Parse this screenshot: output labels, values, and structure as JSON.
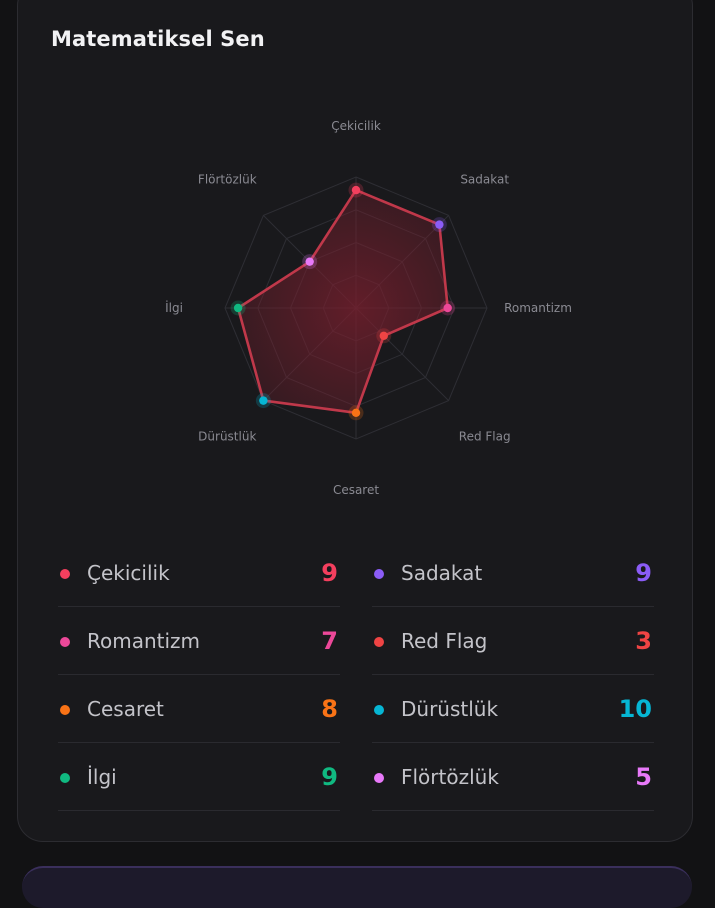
{
  "card": {
    "title": "Matematiksel Sen"
  },
  "chart_data": {
    "type": "radar",
    "title": "",
    "max": 10,
    "rings": 4,
    "line_color": "#c0384a",
    "fill_color": "#7a1f2e",
    "axes": [
      {
        "label": "Çekicilik",
        "value": 9,
        "color": "#f43f5e"
      },
      {
        "label": "Sadakat",
        "value": 9,
        "color": "#8b5cf6"
      },
      {
        "label": "Romantizm",
        "value": 7,
        "color": "#ec4899"
      },
      {
        "label": "Red Flag",
        "value": 3,
        "color": "#ef4444"
      },
      {
        "label": "Cesaret",
        "value": 8,
        "color": "#f97316"
      },
      {
        "label": "Dürüstlük",
        "value": 10,
        "color": "#06b6d4"
      },
      {
        "label": "İlgi",
        "value": 9,
        "color": "#10b981"
      },
      {
        "label": "Flörtözlük",
        "value": 5,
        "color": "#e879f9"
      }
    ]
  },
  "stats": [
    {
      "label": "Çekicilik",
      "value": "9",
      "color": "#f43f5e"
    },
    {
      "label": "Sadakat",
      "value": "9",
      "color": "#8b5cf6"
    },
    {
      "label": "Romantizm",
      "value": "7",
      "color": "#ec4899"
    },
    {
      "label": "Red Flag",
      "value": "3",
      "color": "#ef4444"
    },
    {
      "label": "Cesaret",
      "value": "8",
      "color": "#f97316"
    },
    {
      "label": "Dürüstlük",
      "value": "10",
      "color": "#06b6d4"
    },
    {
      "label": "İlgi",
      "value": "9",
      "color": "#10b981"
    },
    {
      "label": "Flörtözlük",
      "value": "5",
      "color": "#e879f9"
    }
  ]
}
